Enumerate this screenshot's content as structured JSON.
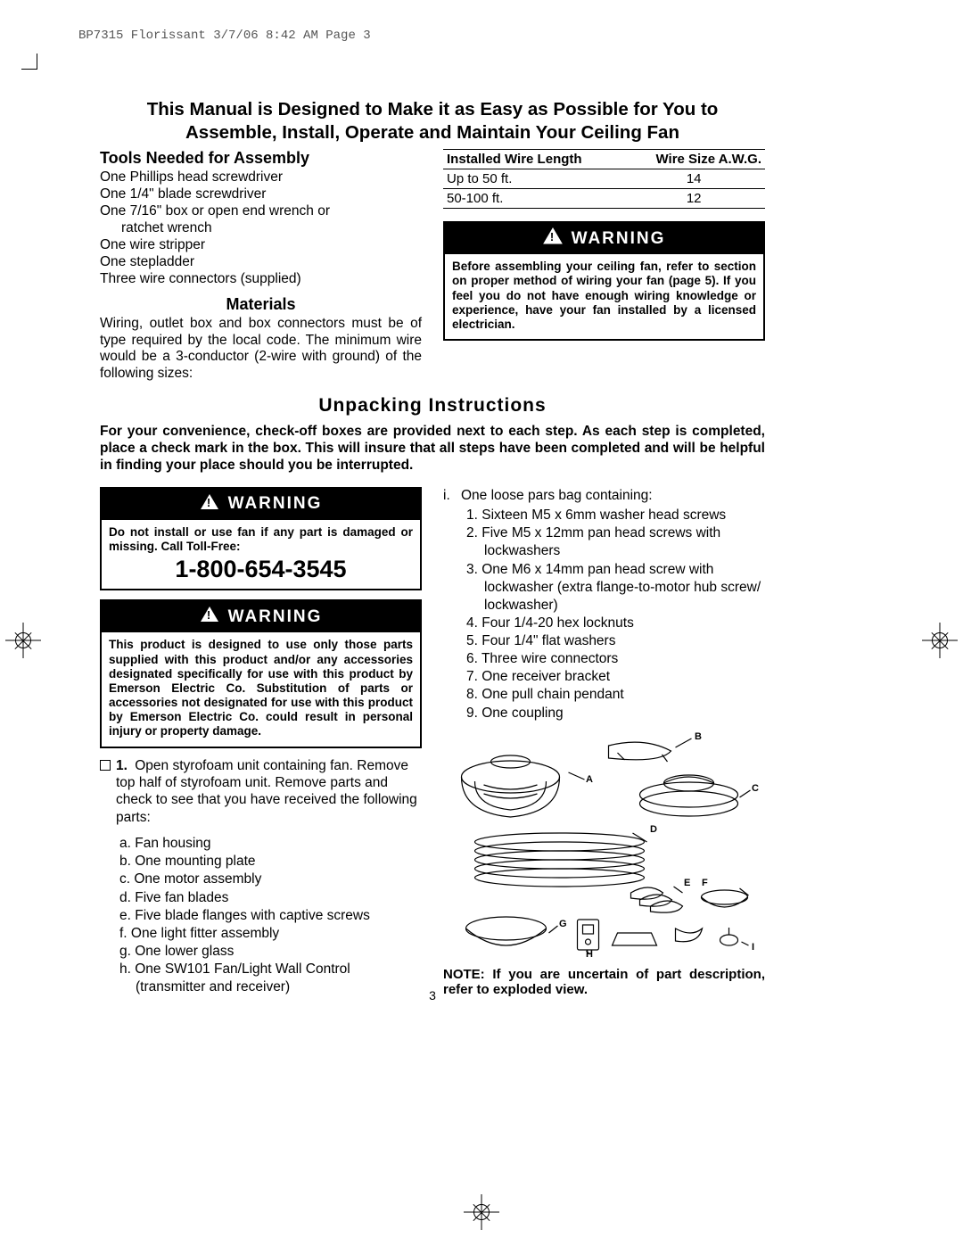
{
  "printHeader": "BP7315 Florissant  3/7/06  8:42 AM  Page 3",
  "mainTitle": "This Manual is Designed to Make it as Easy as Possible for You to Assemble, Install, Operate and Maintain Your Ceiling Fan",
  "toolsHeading": "Tools Needed for Assembly",
  "tools": [
    "One Phillips head screwdriver",
    "One 1/4\" blade screwdriver",
    "One 7/16\" box or open end wrench or ratchet wrench",
    "One wire stripper",
    "One stepladder",
    "Three wire connectors (supplied)"
  ],
  "materialsHeading": "Materials",
  "materialsText": "Wiring, outlet box and box connectors must be of type required by the local code. The minimum wire would be a 3-conductor (2-wire with ground) of the following sizes:",
  "wireTable": {
    "headers": [
      "Installed Wire Length",
      "Wire Size A.W.G."
    ],
    "rows": [
      [
        "Up to 50 ft.",
        "14"
      ],
      [
        "50-100 ft.",
        "12"
      ]
    ]
  },
  "warningLabel": "WARNING",
  "warning1": "Before assembling your ceiling fan, refer to section on proper method of wiring your fan (page 5). If you feel you do not have enough wiring knowledge or experience, have your fan installed by a licensed electrician.",
  "unpackTitle": "Unpacking Instructions",
  "unpackIntro": "For your convenience, check-off boxes are provided next to each step. As each step is completed, place a check mark in the box. This will insure that all steps have been completed and will be helpful in finding your place should you be interrupted.",
  "warning2": "Do not install or use fan if any part is damaged or missing. Call Toll-Free:",
  "phone": "1-800-654-3545",
  "warning3": "This product is designed to use only those parts supplied with this product and/or any accessories designated specifically for use with this product by Emerson Electric Co. Substitution of parts or accessories not designated for use with this product by Emerson Electric Co. could result in personal injury or property damage.",
  "step1": "Open styrofoam unit containing fan. Remove top half of styrofoam unit. Remove parts and check to see that you have received the following parts:",
  "partsAlpha": [
    "a. Fan housing",
    "b. One mounting plate",
    "c. One motor assembly",
    "d. Five fan blades",
    "e. Five blade flanges with captive screws",
    "f. One light fitter assembly",
    "g. One lower glass",
    "h. One SW101 Fan/Light Wall Control (transmitter and receiver)"
  ],
  "partILabel": "i.",
  "partIText": "One loose pars bag containing:",
  "partsNum": [
    "1. Sixteen M5 x 6mm washer head screws",
    "2. Five M5 x 12mm pan head screws with lockwashers",
    "3. One M6 x 14mm pan head screw with lockwasher (extra flange-to-motor hub screw/ lockwasher)",
    "4. Four 1/4-20 hex locknuts",
    "5. Four 1/4\" flat washers",
    "6. Three wire connectors",
    "7. One receiver bracket",
    "8. One pull chain pendant",
    "9. One coupling"
  ],
  "note": "NOTE: If you are uncertain of part description, refer to exploded view.",
  "pageNum": "3",
  "diagramLabels": {
    "A": "A",
    "B": "B",
    "C": "C",
    "D": "D",
    "E": "E",
    "F": "F",
    "G": "G",
    "H": "H",
    "I": "I"
  },
  "colors": {
    "text": "#000000",
    "bg": "#ffffff",
    "warnBg": "#000000",
    "warnFg": "#ffffff"
  }
}
